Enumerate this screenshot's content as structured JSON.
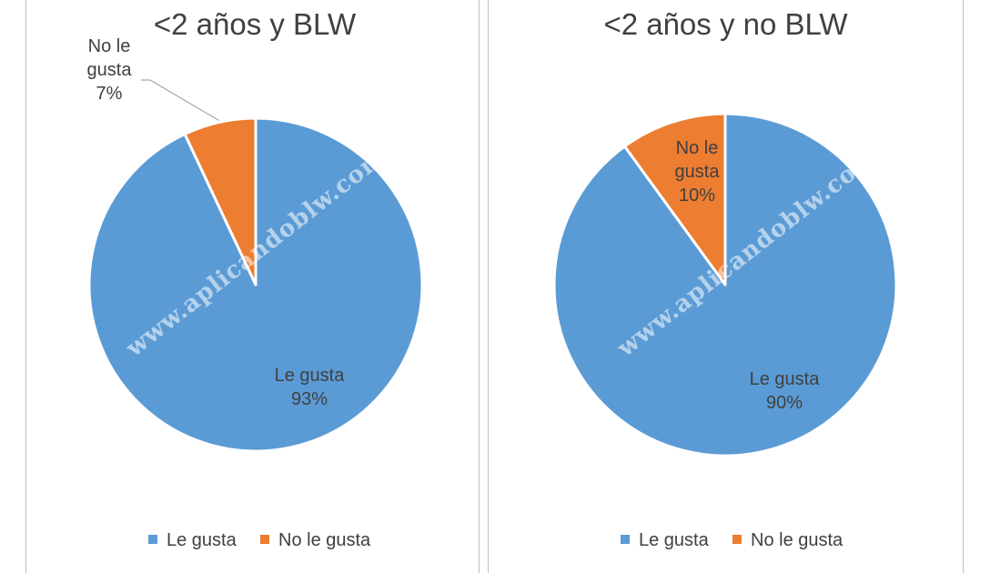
{
  "colors": {
    "le_gusta": "#5b9bd5",
    "no_le_gusta": "#ed7d31"
  },
  "watermark": "www.aplicandoblw.com",
  "chart_data": [
    {
      "type": "pie",
      "title": "<2 años y BLW",
      "slices": [
        {
          "name": "Le gusta",
          "value": 93,
          "label_line1": "Le gusta",
          "label_line2": "93%"
        },
        {
          "name": "No le gusta",
          "value": 7,
          "label_line1": "No le",
          "label_line2": "gusta",
          "label_line3": "7%"
        }
      ],
      "legend": {
        "position": "bottom",
        "items": [
          "Le gusta",
          "No le gusta"
        ]
      }
    },
    {
      "type": "pie",
      "title": "<2 años y no BLW",
      "slices": [
        {
          "name": "Le gusta",
          "value": 90,
          "label_line1": "Le gusta",
          "label_line2": "90%"
        },
        {
          "name": "No le gusta",
          "value": 10,
          "label_line1": "No le",
          "label_line2": "gusta",
          "label_line3": "10%"
        }
      ],
      "legend": {
        "position": "bottom",
        "items": [
          "Le gusta",
          "No le gusta"
        ]
      }
    }
  ]
}
